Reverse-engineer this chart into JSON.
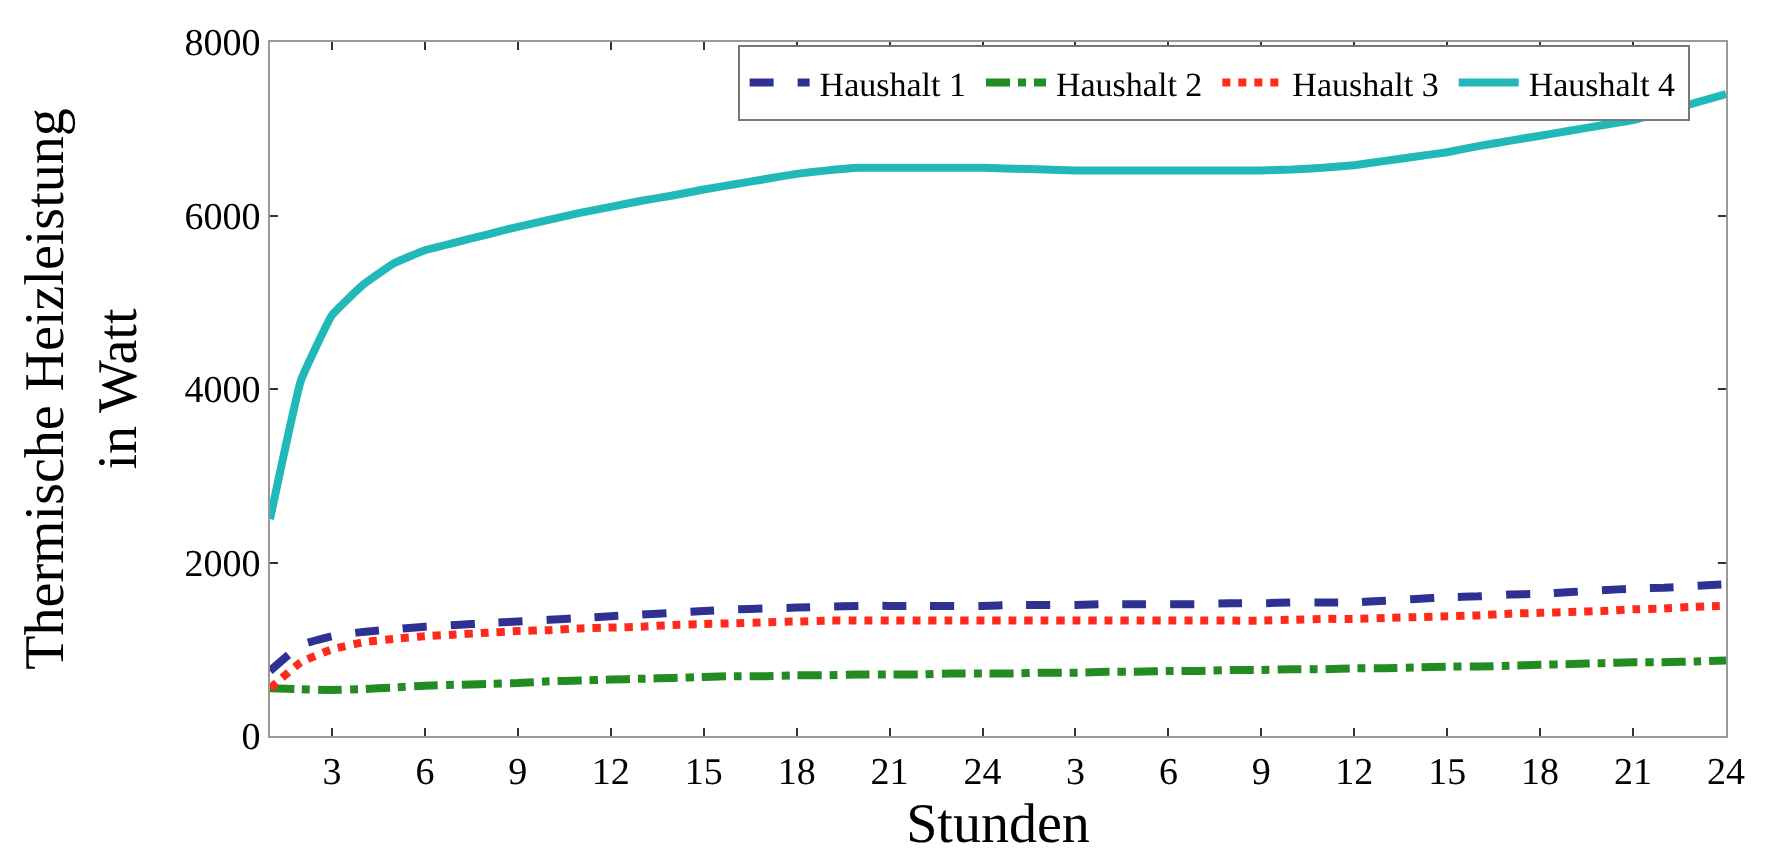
{
  "chart_data": {
    "type": "line",
    "xlabel": "Stunden",
    "ylabel": "Thermische Heizleistung\nin Watt",
    "categories": [
      null,
      null,
      "3",
      null,
      null,
      "6",
      null,
      null,
      "9",
      null,
      null,
      "12",
      null,
      null,
      "15",
      null,
      null,
      "18",
      null,
      null,
      "21",
      null,
      null,
      "24",
      null,
      null,
      "3",
      null,
      null,
      "6",
      null,
      null,
      "9",
      null,
      null,
      "12",
      null,
      null,
      "15",
      null,
      null,
      "18",
      null,
      null,
      "21",
      null,
      null,
      "24"
    ],
    "ylim": [
      0,
      8000
    ],
    "yticks": [
      0,
      2000,
      4000,
      6000,
      8000
    ],
    "legend": "top right",
    "marker": "none",
    "series": [
      {
        "name": "Haushalt 1",
        "color": "#2e3192",
        "line_style": "dashed",
        "values": [
          750,
          1050,
          1150,
          1200,
          1230,
          1260,
          1280,
          1300,
          1320,
          1340,
          1360,
          1380,
          1400,
          1420,
          1440,
          1460,
          1470,
          1480,
          1490,
          1500,
          1500,
          1500,
          1500,
          1500,
          1510,
          1510,
          1510,
          1520,
          1520,
          1520,
          1520,
          1530,
          1530,
          1540,
          1540,
          1540,
          1560,
          1580,
          1600,
          1610,
          1630,
          1640,
          1660,
          1680,
          1700,
          1710,
          1730,
          1750
        ]
      },
      {
        "name": "Haushalt 2",
        "color": "#228b22",
        "line_style": "dashdot",
        "values": [
          550,
          540,
          530,
          540,
          560,
          580,
          590,
          600,
          610,
          630,
          640,
          650,
          660,
          670,
          680,
          690,
          690,
          700,
          700,
          710,
          710,
          710,
          720,
          720,
          720,
          730,
          730,
          740,
          740,
          750,
          750,
          760,
          760,
          770,
          770,
          780,
          780,
          790,
          800,
          800,
          810,
          820,
          830,
          840,
          850,
          850,
          860,
          870
        ]
      },
      {
        "name": "Haushalt 3",
        "color": "#ff2a1a",
        "line_style": "dotted",
        "values": [
          550,
          850,
          1000,
          1080,
          1120,
          1150,
          1170,
          1190,
          1210,
          1220,
          1240,
          1250,
          1260,
          1280,
          1290,
          1300,
          1310,
          1320,
          1330,
          1330,
          1330,
          1330,
          1330,
          1330,
          1330,
          1330,
          1330,
          1330,
          1330,
          1330,
          1330,
          1330,
          1330,
          1340,
          1350,
          1350,
          1360,
          1370,
          1380,
          1390,
          1410,
          1420,
          1430,
          1440,
          1460,
          1470,
          1490,
          1500
        ]
      },
      {
        "name": "Haushalt 4",
        "color": "#20b8b8",
        "line_style": "solid",
        "values": [
          2500,
          4100,
          4850,
          5200,
          5450,
          5600,
          5690,
          5780,
          5870,
          5950,
          6030,
          6100,
          6170,
          6230,
          6300,
          6360,
          6420,
          6480,
          6520,
          6550,
          6550,
          6550,
          6550,
          6550,
          6540,
          6530,
          6520,
          6520,
          6520,
          6520,
          6520,
          6520,
          6520,
          6530,
          6550,
          6580,
          6630,
          6680,
          6730,
          6800,
          6860,
          6920,
          6980,
          7040,
          7100,
          null,
          null,
          7400
        ]
      }
    ]
  }
}
